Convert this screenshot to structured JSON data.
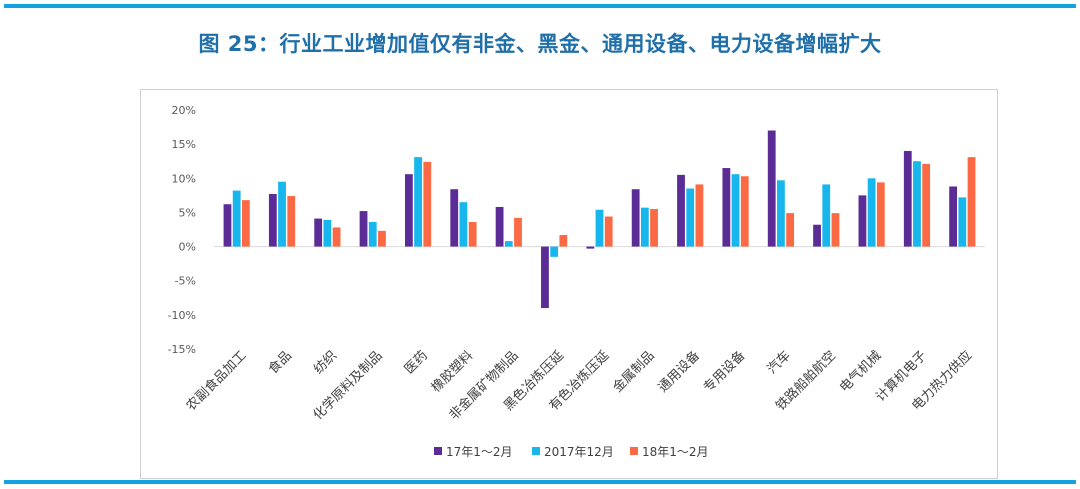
{
  "figure_title": "图 25：行业工业增加值仅有非金、黑金、通用设备、电力设备增幅扩大",
  "colors": {
    "s1": "#5b2c96",
    "s2": "#17b6ec",
    "s3": "#fb6a45",
    "rule": "#12a3e0",
    "title": "#1f6fa9"
  },
  "chart_data": {
    "type": "bar",
    "title": "",
    "xlabel": "",
    "ylabel": "",
    "ylim": [
      -15,
      20
    ],
    "yticks": [
      -15,
      -10,
      -5,
      0,
      5,
      10,
      15,
      20
    ],
    "ytick_labels": [
      "-15%",
      "-10%",
      "-5%",
      "0%",
      "5%",
      "10%",
      "15%",
      "20%"
    ],
    "categories": [
      "农副食品加工",
      "食品",
      "纺织",
      "化学原料及制品",
      "医药",
      "橡胶塑料",
      "非金属矿物制品",
      "黑色冶炼压延",
      "有色冶炼压延",
      "金属制品",
      "通用设备",
      "专用设备",
      "汽车",
      "铁路船舶航空",
      "电气机械",
      "计算机电子",
      "电力热力供应"
    ],
    "series": [
      {
        "name": "17年1～2月",
        "values": [
          6.2,
          7.7,
          4.1,
          5.2,
          10.6,
          8.4,
          5.8,
          -9.0,
          -0.3,
          8.4,
          10.5,
          11.5,
          17.0,
          3.2,
          7.5,
          14.0,
          8.8
        ]
      },
      {
        "name": "2017年12月",
        "values": [
          8.2,
          9.5,
          3.9,
          3.6,
          13.1,
          6.5,
          0.8,
          -1.5,
          5.4,
          5.7,
          8.5,
          10.6,
          9.7,
          9.1,
          10.0,
          12.5,
          7.2
        ]
      },
      {
        "name": "18年1～2月",
        "values": [
          6.8,
          7.4,
          2.8,
          2.3,
          12.4,
          3.6,
          4.2,
          1.7,
          4.4,
          5.5,
          9.1,
          10.3,
          4.9,
          4.9,
          9.4,
          12.1,
          13.1
        ]
      }
    ],
    "legend_position": "bottom",
    "grid": false
  }
}
